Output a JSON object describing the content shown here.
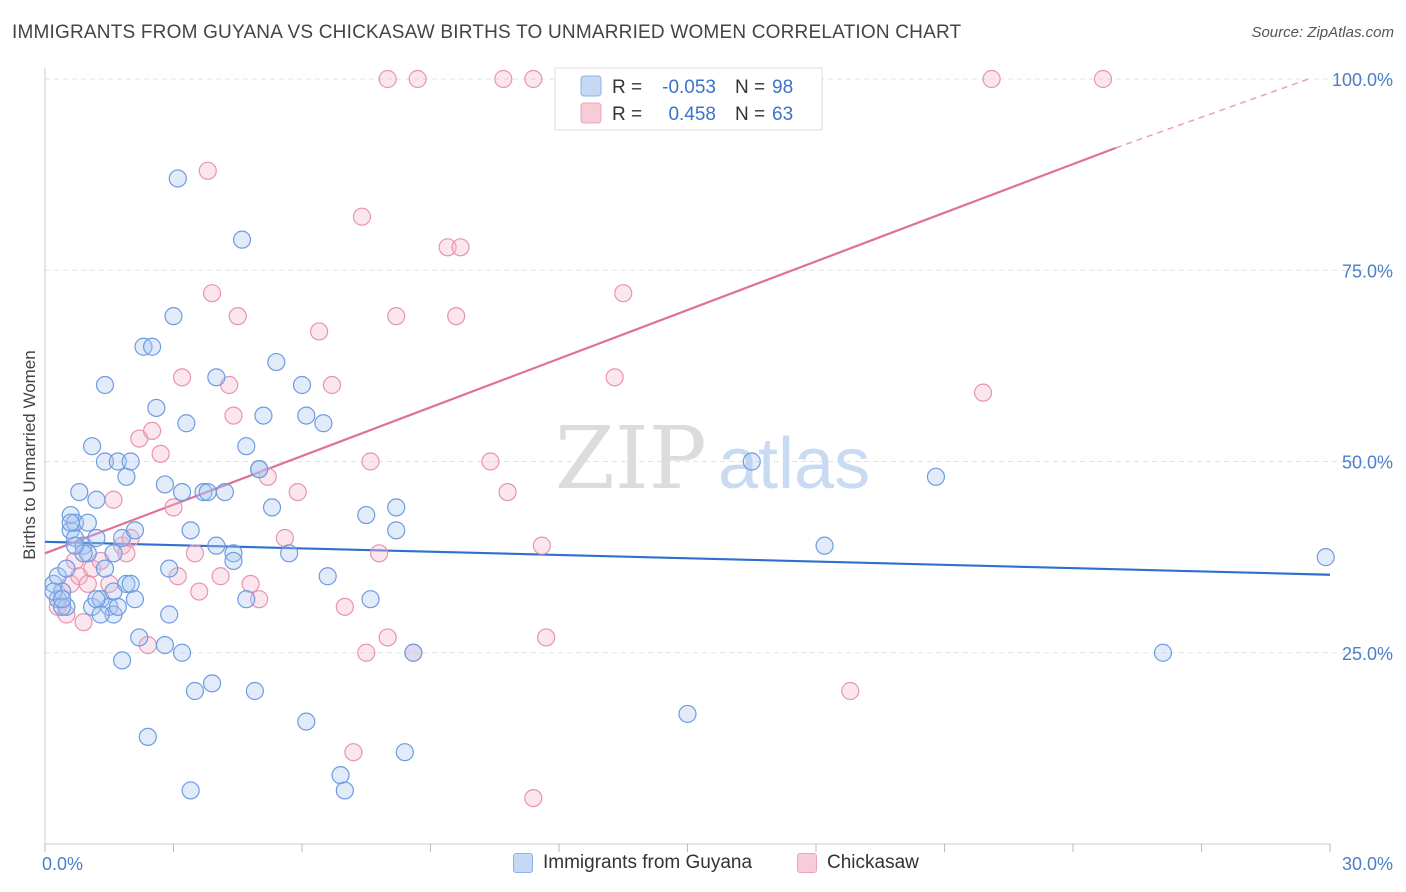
{
  "title": "IMMIGRANTS FROM GUYANA VS CHICKASAW BIRTHS TO UNMARRIED WOMEN CORRELATION CHART",
  "source": "Source: ZipAtlas.com",
  "watermark": {
    "zip": "ZIP",
    "atlas": "atlas"
  },
  "colors": {
    "blue": "#4a7fd4",
    "blue_fill": "#a9c6f0",
    "pink": "#e0709a",
    "pink_fill": "#f4b6ca",
    "tick": "#4a7fc9"
  },
  "legend": {
    "rows": [
      {
        "r_label": "R =",
        "r_value": "-0.053",
        "n_label": "N =",
        "n_value": "98"
      },
      {
        "r_label": "R =",
        "r_value": "0.458",
        "n_label": "N =",
        "n_value": "63"
      }
    ]
  },
  "bottom_legend": {
    "blue": "Immigrants from Guyana",
    "pink": "Chickasaw"
  },
  "chart_data": {
    "type": "scatter",
    "xlabel": "",
    "ylabel": "Births to Unmarried Women",
    "xlim": [
      0,
      30
    ],
    "ylim": [
      0,
      100
    ],
    "x_tick_labels": [
      "0.0%",
      "30.0%"
    ],
    "y_tick_labels": [
      "25.0%",
      "50.0%",
      "75.0%",
      "100.0%"
    ],
    "y_ticks": [
      25,
      50,
      75,
      100
    ],
    "grid": true,
    "legend_position": "top-center",
    "series": [
      {
        "name": "Immigrants from Guyana",
        "color": "#4a7fd4",
        "trend": {
          "x": [
            0,
            30
          ],
          "y": [
            39.5,
            35.2
          ]
        },
        "points": [
          [
            0.2,
            34
          ],
          [
            0.3,
            32
          ],
          [
            0.3,
            35
          ],
          [
            0.4,
            33
          ],
          [
            0.5,
            31
          ],
          [
            0.5,
            36
          ],
          [
            0.6,
            41
          ],
          [
            0.6,
            43
          ],
          [
            0.7,
            40
          ],
          [
            0.7,
            42
          ],
          [
            0.8,
            46
          ],
          [
            0.9,
            39
          ],
          [
            1.0,
            38
          ],
          [
            1.0,
            42
          ],
          [
            1.1,
            52
          ],
          [
            1.1,
            31
          ],
          [
            1.2,
            45
          ],
          [
            1.2,
            40
          ],
          [
            1.3,
            32
          ],
          [
            1.4,
            36
          ],
          [
            1.4,
            50
          ],
          [
            1.4,
            60
          ],
          [
            1.5,
            31
          ],
          [
            1.6,
            33
          ],
          [
            1.6,
            30
          ],
          [
            1.7,
            50
          ],
          [
            1.7,
            31
          ],
          [
            1.8,
            40
          ],
          [
            1.8,
            24
          ],
          [
            1.9,
            34
          ],
          [
            1.9,
            48
          ],
          [
            2.0,
            50
          ],
          [
            2.1,
            41
          ],
          [
            2.2,
            27
          ],
          [
            2.3,
            65
          ],
          [
            2.4,
            14
          ],
          [
            2.6,
            57
          ],
          [
            2.8,
            47
          ],
          [
            2.8,
            26
          ],
          [
            2.9,
            30
          ],
          [
            3.0,
            69
          ],
          [
            3.1,
            87
          ],
          [
            3.2,
            25
          ],
          [
            3.3,
            55
          ],
          [
            3.4,
            41
          ],
          [
            3.5,
            20
          ],
          [
            3.7,
            46
          ],
          [
            3.8,
            46
          ],
          [
            3.9,
            21
          ],
          [
            4.0,
            61
          ],
          [
            4.0,
            39
          ],
          [
            4.2,
            46
          ],
          [
            4.4,
            38
          ],
          [
            4.4,
            37
          ],
          [
            4.6,
            79
          ],
          [
            4.7,
            52
          ],
          [
            4.7,
            32
          ],
          [
            4.9,
            20
          ],
          [
            5.0,
            49
          ],
          [
            5.1,
            56
          ],
          [
            5.3,
            44
          ],
          [
            5.4,
            63
          ],
          [
            5.7,
            38
          ],
          [
            6.0,
            60
          ],
          [
            6.1,
            56
          ],
          [
            6.1,
            16
          ],
          [
            6.5,
            55
          ],
          [
            6.6,
            35
          ],
          [
            6.9,
            9
          ],
          [
            7.0,
            7
          ],
          [
            7.5,
            43
          ],
          [
            7.6,
            32
          ],
          [
            8.2,
            44
          ],
          [
            8.2,
            41
          ],
          [
            8.4,
            12
          ],
          [
            8.6,
            25
          ],
          [
            3.4,
            7
          ],
          [
            2.0,
            34
          ],
          [
            2.5,
            65
          ],
          [
            1.6,
            38
          ],
          [
            0.4,
            31
          ],
          [
            0.9,
            38
          ],
          [
            1.2,
            32
          ],
          [
            2.1,
            32
          ],
          [
            15.0,
            17
          ],
          [
            16.5,
            50
          ],
          [
            18.2,
            39
          ],
          [
            20.8,
            48
          ],
          [
            26.1,
            25
          ],
          [
            29.9,
            37.5
          ],
          [
            5.0,
            49
          ],
          [
            0.2,
            33
          ],
          [
            0.6,
            42
          ],
          [
            1.3,
            30
          ],
          [
            0.4,
            32
          ],
          [
            2.9,
            36
          ],
          [
            3.2,
            46
          ],
          [
            0.7,
            39
          ]
        ]
      },
      {
        "name": "Chickasaw",
        "color": "#e0709a",
        "trend": {
          "x": [
            0,
            25
          ],
          "y": [
            38,
            91
          ]
        },
        "trend_dashed": {
          "x": [
            25,
            29.5
          ],
          "y": [
            91,
            100
          ]
        },
        "points": [
          [
            0.3,
            31
          ],
          [
            0.5,
            30
          ],
          [
            0.6,
            34
          ],
          [
            0.7,
            37
          ],
          [
            0.8,
            35
          ],
          [
            0.9,
            29
          ],
          [
            1.0,
            34
          ],
          [
            1.1,
            36
          ],
          [
            1.3,
            37
          ],
          [
            1.5,
            34
          ],
          [
            1.6,
            45
          ],
          [
            1.8,
            39
          ],
          [
            1.9,
            38
          ],
          [
            2.0,
            40
          ],
          [
            2.2,
            53
          ],
          [
            2.4,
            26
          ],
          [
            2.5,
            54
          ],
          [
            2.7,
            51
          ],
          [
            3.0,
            44
          ],
          [
            3.1,
            35
          ],
          [
            3.2,
            61
          ],
          [
            3.5,
            38
          ],
          [
            3.6,
            33
          ],
          [
            3.8,
            88
          ],
          [
            3.9,
            72
          ],
          [
            4.1,
            35
          ],
          [
            4.3,
            60
          ],
          [
            4.4,
            56
          ],
          [
            4.5,
            69
          ],
          [
            4.8,
            34
          ],
          [
            5.0,
            32
          ],
          [
            5.2,
            48
          ],
          [
            5.6,
            40
          ],
          [
            5.9,
            46
          ],
          [
            6.4,
            67
          ],
          [
            6.7,
            60
          ],
          [
            7.0,
            31
          ],
          [
            7.2,
            12
          ],
          [
            7.4,
            82
          ],
          [
            7.5,
            25
          ],
          [
            7.6,
            50
          ],
          [
            7.8,
            38
          ],
          [
            8.0,
            27
          ],
          [
            8.2,
            69
          ],
          [
            8.6,
            25
          ],
          [
            9.4,
            78
          ],
          [
            9.6,
            69
          ],
          [
            9.7,
            78
          ],
          [
            10.4,
            50
          ],
          [
            10.8,
            46
          ],
          [
            11.4,
            6
          ],
          [
            11.6,
            39
          ],
          [
            11.7,
            27
          ],
          [
            13.3,
            61
          ],
          [
            13.5,
            72
          ],
          [
            18.8,
            20
          ],
          [
            21.9,
            59
          ],
          [
            8.0,
            100
          ],
          [
            8.7,
            100
          ],
          [
            10.7,
            100
          ],
          [
            11.4,
            100
          ],
          [
            22.1,
            100
          ],
          [
            24.7,
            100
          ]
        ]
      }
    ]
  }
}
